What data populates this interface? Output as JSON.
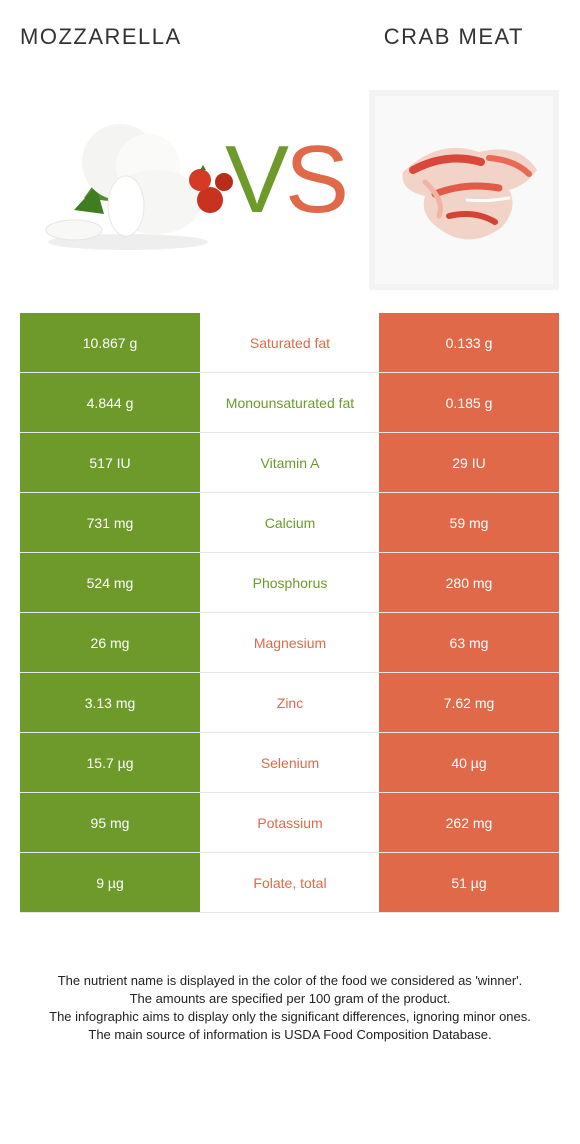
{
  "header": {
    "left_title": "MOZZARELLA",
    "right_title": "CRAB MEAT"
  },
  "vs": {
    "v": "V",
    "s": "S"
  },
  "colors": {
    "winner_left": "#6e9a2c",
    "winner_right": "#e0694a"
  },
  "images": {
    "left": "mozzarella-image",
    "right": "crab-meat-image"
  },
  "rows": [
    {
      "left": "10.867 g",
      "nutrient": "Saturated fat",
      "right": "0.133 g",
      "winner": "right"
    },
    {
      "left": "4.844 g",
      "nutrient": "Monounsaturated fat",
      "right": "0.185 g",
      "winner": "left"
    },
    {
      "left": "517 IU",
      "nutrient": "Vitamin A",
      "right": "29 IU",
      "winner": "left"
    },
    {
      "left": "731 mg",
      "nutrient": "Calcium",
      "right": "59 mg",
      "winner": "left"
    },
    {
      "left": "524 mg",
      "nutrient": "Phosphorus",
      "right": "280 mg",
      "winner": "left"
    },
    {
      "left": "26 mg",
      "nutrient": "Magnesium",
      "right": "63 mg",
      "winner": "right"
    },
    {
      "left": "3.13 mg",
      "nutrient": "Zinc",
      "right": "7.62 mg",
      "winner": "right"
    },
    {
      "left": "15.7 µg",
      "nutrient": "Selenium",
      "right": "40 µg",
      "winner": "right"
    },
    {
      "left": "95 mg",
      "nutrient": "Potassium",
      "right": "262 mg",
      "winner": "right"
    },
    {
      "left": "9 µg",
      "nutrient": "Folate, total",
      "right": "51 µg",
      "winner": "right"
    }
  ],
  "footer": {
    "lines": [
      "The nutrient name is displayed in the color of the food we considered as 'winner'.",
      "The amounts are specified per 100 gram of the product.",
      "The infographic aims to display only the significant differences, ignoring minor ones.",
      "The main source of information is USDA Food Composition Database."
    ]
  }
}
